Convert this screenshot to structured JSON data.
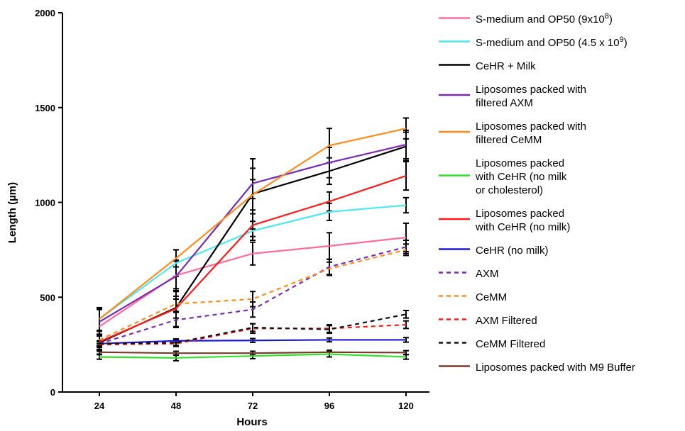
{
  "chart_data": {
    "type": "line",
    "title": "",
    "xlabel": "Hours",
    "ylabel": "Length (µm)",
    "x": [
      24,
      48,
      72,
      96,
      120
    ],
    "x_tick_labels": [
      "24",
      "48",
      "72",
      "96",
      "120"
    ],
    "y_tick_labels": [
      "0",
      "500",
      "1000",
      "1500",
      "2000"
    ],
    "ylim": [
      0,
      2000
    ],
    "grid": false,
    "legend_position": "right",
    "series": [
      {
        "name": "S-medium and OP50 (9x10^8)",
        "legend_text": "S-medium and OP50 (9x10",
        "legend_sup": "8",
        "legend_tail": ")",
        "color": "#ff6b9d",
        "dash": "solid",
        "values": [
          345,
          615,
          730,
          770,
          815
        ],
        "error": [
          90,
          80,
          60,
          70,
          75
        ]
      },
      {
        "name": "S-medium and OP50 (4.5 x 10^9)",
        "legend_text": "S-medium and OP50 (4.5 x 10",
        "legend_sup": "9",
        "legend_tail": ")",
        "color": "#4de8f0",
        "dash": "solid",
        "values": [
          385,
          680,
          850,
          950,
          985
        ],
        "error": [
          60,
          70,
          50,
          45,
          40
        ]
      },
      {
        "name": "CeHR + Milk",
        "legend_text": "CeHR + Milk",
        "color": "#000000",
        "dash": "solid",
        "values": [
          260,
          445,
          1045,
          1165,
          1295
        ],
        "error": [
          60,
          100,
          185,
          70,
          75
        ]
      },
      {
        "name": "Liposomes packed with filtered AXM",
        "legend_lines": [
          "Liposomes packed with",
          "filtered AXM"
        ],
        "color": "#7a2bb5",
        "dash": "solid",
        "values": [
          370,
          610,
          1100,
          1210,
          1305
        ],
        "error": [
          70,
          80,
          80,
          80,
          75
        ]
      },
      {
        "name": "Liposomes packed with filtered CeMM",
        "legend_lines": [
          "Liposomes packed with",
          "filtered CeMM"
        ],
        "color": "#ff8c1a",
        "dash": "solid",
        "values": [
          385,
          705,
          1040,
          1300,
          1390
        ],
        "error": [
          60,
          45,
          80,
          90,
          55
        ]
      },
      {
        "name": "Liposomes packed with CeHR (no milk or cholesterol)",
        "legend_lines": [
          "Liposomes packed",
          "with CeHR (no milk",
          "or cholesterol)"
        ],
        "color": "#33e02c",
        "dash": "solid",
        "values": [
          185,
          180,
          190,
          200,
          185
        ],
        "error": [
          12,
          15,
          14,
          15,
          12
        ]
      },
      {
        "name": "Liposomes packed with CeHR (no milk)",
        "legend_lines": [
          "Liposomes packed",
          "with CeHR (no milk)"
        ],
        "color": "#ff1a1a",
        "dash": "solid",
        "values": [
          265,
          440,
          880,
          1005,
          1140
        ],
        "error": [
          40,
          50,
          60,
          50,
          75
        ]
      },
      {
        "name": "CeHR (no milk)",
        "legend_text": "CeHR (no milk)",
        "color": "#1a1ad6",
        "dash": "solid",
        "values": [
          255,
          270,
          272,
          275,
          275
        ],
        "error": [
          10,
          10,
          10,
          10,
          12
        ]
      },
      {
        "name": "AXM",
        "legend_text": "AXM",
        "color": "#7a2bb5",
        "dash": "dashed",
        "values": [
          255,
          380,
          435,
          660,
          765
        ],
        "error": [
          40,
          40,
          40,
          40,
          35
        ]
      },
      {
        "name": "CeMM",
        "legend_text": "CeMM",
        "color": "#ff8c1a",
        "dash": "dashed",
        "values": [
          275,
          465,
          490,
          650,
          750
        ],
        "error": [
          30,
          40,
          40,
          35,
          30
        ]
      },
      {
        "name": "AXM Filtered",
        "legend_text": "AXM Filtered",
        "color": "#ff1a1a",
        "dash": "dashed",
        "values": [
          250,
          255,
          335,
          335,
          355
        ],
        "error": [
          15,
          15,
          25,
          20,
          20
        ]
      },
      {
        "name": "CeMM Filtered",
        "legend_text": "CeMM Filtered",
        "color": "#111111",
        "dash": "dashed",
        "values": [
          255,
          260,
          340,
          330,
          410
        ],
        "error": [
          15,
          15,
          20,
          20,
          20
        ]
      },
      {
        "name": "Liposomes packed with M9 Buffer",
        "legend_text": "Liposomes packed with M9 Buffer",
        "color": "#7a3a2a",
        "dash": "solid",
        "values": [
          210,
          205,
          205,
          210,
          208
        ],
        "error": [
          10,
          10,
          10,
          10,
          10
        ]
      }
    ]
  }
}
